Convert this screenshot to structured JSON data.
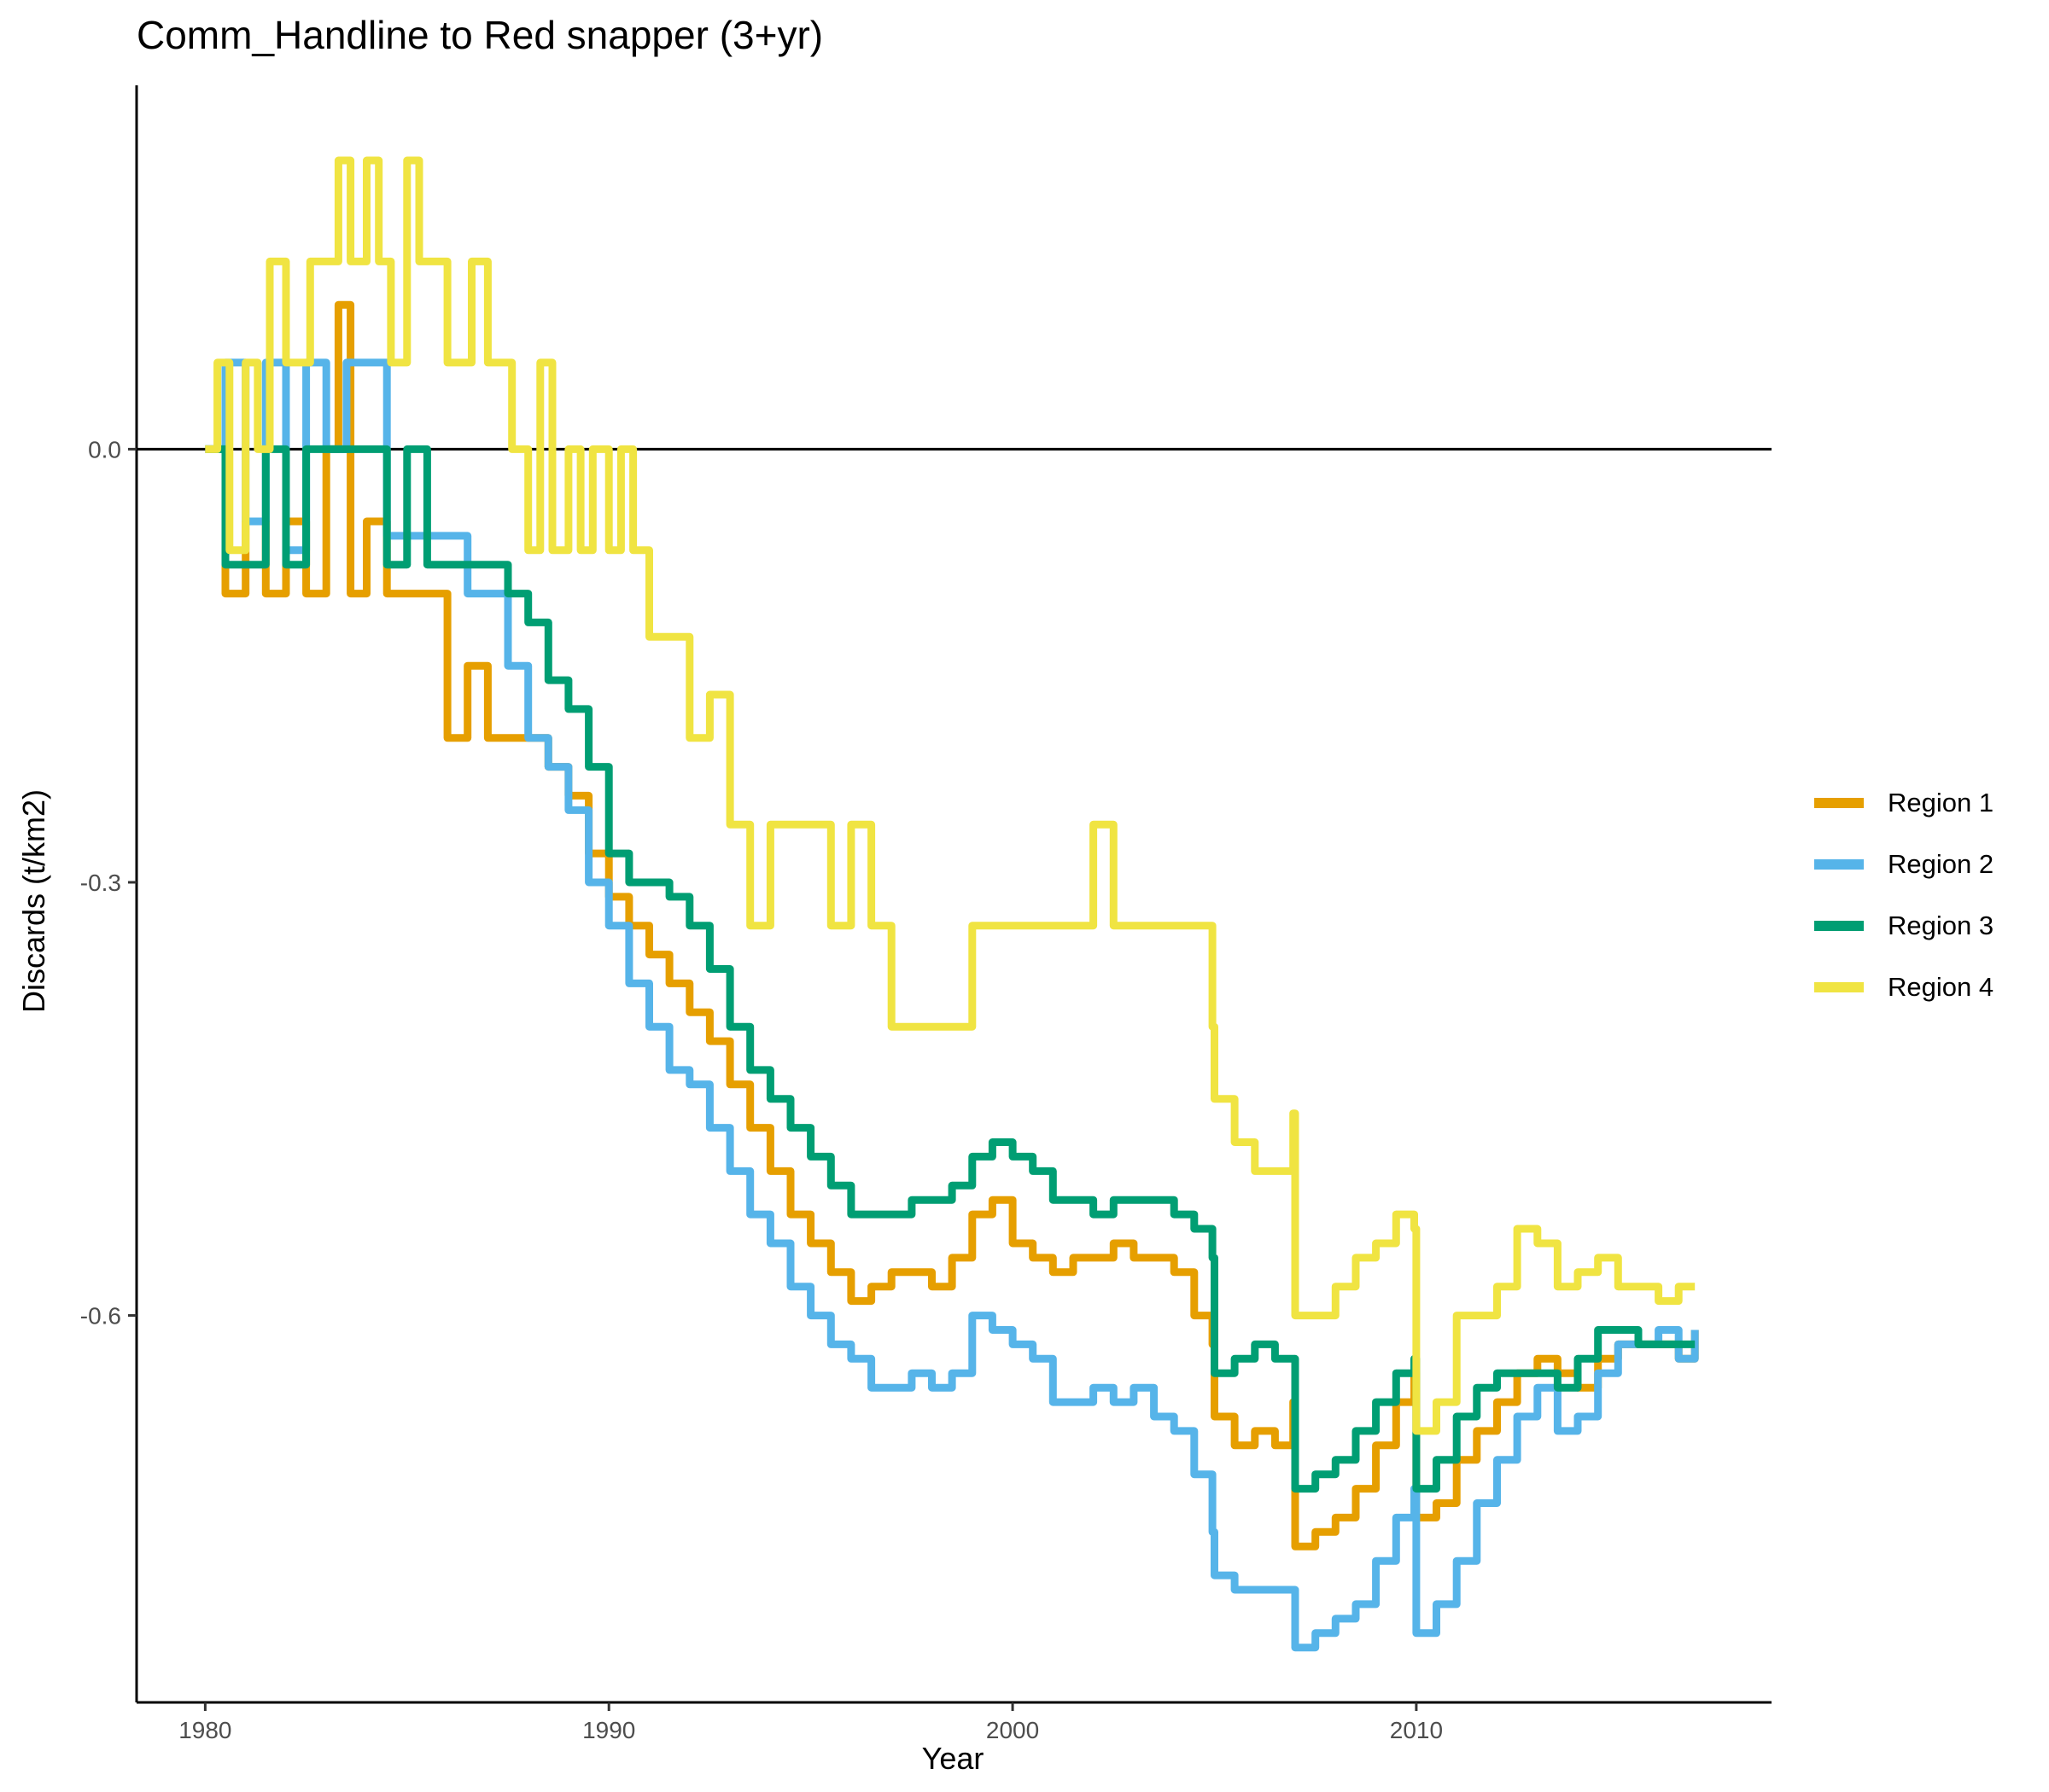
{
  "chart_data": {
    "type": "line",
    "title": "Comm_Handline to Red snapper (3+yr)",
    "xlabel": "Year",
    "ylabel": "Discards (t/km2)",
    "xlim": [
      1978.3,
      2018.8
    ],
    "ylim": [
      -0.868,
      0.252
    ],
    "xticks": [
      1980,
      1990,
      2000,
      2010
    ],
    "xtick_labels": [
      "1980",
      "1990",
      "2000",
      "2010"
    ],
    "yticks": [
      0.0,
      -0.3,
      -0.6
    ],
    "ytick_labels": [
      "0.0",
      "-0.3",
      "-0.6"
    ],
    "hline": 0,
    "grid": false,
    "legend_position": "right",
    "series": [
      {
        "name": "Region 1",
        "color": "#E69F00",
        "x": [
          1980.0,
          1980.5,
          1981.0,
          1981.5,
          1982.0,
          1982.5,
          1983.0,
          1983.3,
          1983.6,
          1984.0,
          1984.5,
          1985.0,
          1985.5,
          1986.0,
          1986.5,
          1987.0,
          1987.5,
          1988.0,
          1988.5,
          1989.0,
          1989.5,
          1990.0,
          1990.5,
          1991.0,
          1991.5,
          1992.0,
          1992.5,
          1993.0,
          1993.5,
          1994.0,
          1994.5,
          1995.0,
          1995.5,
          1996.0,
          1996.5,
          1997.0,
          1997.5,
          1998.0,
          1998.5,
          1999.0,
          1999.5,
          2000.0,
          2000.5,
          2001.0,
          2001.5,
          2002.0,
          2002.5,
          2003.0,
          2003.5,
          2004.0,
          2004.5,
          2004.95,
          2005.0,
          2005.5,
          2006.0,
          2006.5,
          2006.95,
          2007.0,
          2007.5,
          2008.0,
          2008.5,
          2009.0,
          2009.5,
          2009.95,
          2010.0,
          2010.5,
          2011.0,
          2011.5,
          2012.0,
          2012.5,
          2013.0,
          2013.5,
          2014.0,
          2014.5,
          2015.0,
          2015.5,
          2016.0,
          2016.5,
          2016.9
        ],
        "y": [
          0.0,
          -0.1,
          -0.05,
          -0.1,
          -0.05,
          -0.1,
          0.0,
          0.1,
          -0.1,
          -0.05,
          -0.1,
          -0.1,
          -0.1,
          -0.2,
          -0.15,
          -0.2,
          -0.2,
          -0.2,
          -0.22,
          -0.24,
          -0.28,
          -0.31,
          -0.33,
          -0.35,
          -0.37,
          -0.39,
          -0.41,
          -0.44,
          -0.47,
          -0.5,
          -0.53,
          -0.55,
          -0.57,
          -0.59,
          -0.58,
          -0.57,
          -0.57,
          -0.58,
          -0.56,
          -0.53,
          -0.52,
          -0.55,
          -0.56,
          -0.57,
          -0.56,
          -0.56,
          -0.55,
          -0.56,
          -0.56,
          -0.57,
          -0.6,
          -0.62,
          -0.67,
          -0.69,
          -0.68,
          -0.69,
          -0.66,
          -0.76,
          -0.75,
          -0.74,
          -0.72,
          -0.69,
          -0.66,
          -0.64,
          -0.74,
          -0.73,
          -0.7,
          -0.68,
          -0.66,
          -0.64,
          -0.63,
          -0.64,
          -0.65,
          -0.63,
          -0.62,
          -0.62,
          -0.62,
          -0.63,
          -0.61
        ]
      },
      {
        "name": "Region 2",
        "color": "#56B4E9",
        "x": [
          1980.0,
          1980.5,
          1981.0,
          1981.5,
          1982.0,
          1982.5,
          1983.0,
          1983.5,
          1984.0,
          1984.5,
          1985.0,
          1985.5,
          1986.0,
          1986.5,
          1987.0,
          1987.5,
          1988.0,
          1988.5,
          1989.0,
          1989.5,
          1990.0,
          1990.5,
          1991.0,
          1991.5,
          1992.0,
          1992.5,
          1993.0,
          1993.5,
          1994.0,
          1994.5,
          1995.0,
          1995.5,
          1996.0,
          1996.5,
          1997.0,
          1997.5,
          1998.0,
          1998.5,
          1999.0,
          1999.5,
          2000.0,
          2000.5,
          2001.0,
          2001.5,
          2002.0,
          2002.5,
          2003.0,
          2003.5,
          2004.0,
          2004.5,
          2004.95,
          2005.0,
          2005.5,
          2006.0,
          2006.5,
          2006.95,
          2007.0,
          2007.5,
          2008.0,
          2008.5,
          2009.0,
          2009.5,
          2009.95,
          2010.0,
          2010.5,
          2011.0,
          2011.5,
          2012.0,
          2012.5,
          2013.0,
          2013.5,
          2014.0,
          2014.5,
          2015.0,
          2015.5,
          2016.0,
          2016.5,
          2016.9
        ],
        "y": [
          0.0,
          0.06,
          -0.05,
          0.06,
          -0.07,
          0.06,
          0.0,
          0.06,
          0.06,
          -0.06,
          -0.06,
          -0.06,
          -0.06,
          -0.1,
          -0.1,
          -0.15,
          -0.2,
          -0.22,
          -0.25,
          -0.3,
          -0.33,
          -0.37,
          -0.4,
          -0.43,
          -0.44,
          -0.47,
          -0.5,
          -0.53,
          -0.55,
          -0.58,
          -0.6,
          -0.62,
          -0.63,
          -0.65,
          -0.65,
          -0.64,
          -0.65,
          -0.64,
          -0.6,
          -0.61,
          -0.62,
          -0.63,
          -0.66,
          -0.66,
          -0.65,
          -0.66,
          -0.65,
          -0.67,
          -0.68,
          -0.71,
          -0.75,
          -0.78,
          -0.79,
          -0.79,
          -0.79,
          -0.79,
          -0.83,
          -0.82,
          -0.81,
          -0.8,
          -0.77,
          -0.74,
          -0.72,
          -0.82,
          -0.8,
          -0.77,
          -0.73,
          -0.7,
          -0.67,
          -0.65,
          -0.68,
          -0.67,
          -0.64,
          -0.62,
          -0.62,
          -0.61,
          -0.63,
          -0.61
        ]
      },
      {
        "name": "Region 3",
        "color": "#009E73",
        "x": [
          1980.0,
          1980.5,
          1981.0,
          1981.5,
          1982.0,
          1982.5,
          1983.0,
          1983.5,
          1984.0,
          1984.5,
          1985.0,
          1985.5,
          1986.0,
          1986.5,
          1987.0,
          1987.5,
          1988.0,
          1988.5,
          1989.0,
          1989.5,
          1990.0,
          1990.5,
          1991.0,
          1991.5,
          1992.0,
          1992.5,
          1993.0,
          1993.5,
          1994.0,
          1994.5,
          1995.0,
          1995.5,
          1996.0,
          1996.5,
          1997.0,
          1997.5,
          1998.0,
          1998.5,
          1999.0,
          1999.5,
          2000.0,
          2000.5,
          2001.0,
          2001.5,
          2002.0,
          2002.5,
          2003.0,
          2003.5,
          2004.0,
          2004.5,
          2004.95,
          2005.0,
          2005.5,
          2006.0,
          2006.5,
          2006.95,
          2007.0,
          2007.5,
          2008.0,
          2008.5,
          2009.0,
          2009.5,
          2009.95,
          2010.0,
          2010.5,
          2011.0,
          2011.5,
          2012.0,
          2012.5,
          2013.0,
          2013.5,
          2014.0,
          2014.5,
          2015.0,
          2015.5,
          2016.0,
          2016.5,
          2016.9
        ],
        "y": [
          0.0,
          -0.08,
          -0.08,
          0.0,
          -0.08,
          0.0,
          0.0,
          0.0,
          0.0,
          -0.08,
          0.0,
          -0.08,
          -0.08,
          -0.08,
          -0.08,
          -0.1,
          -0.12,
          -0.16,
          -0.18,
          -0.22,
          -0.28,
          -0.3,
          -0.3,
          -0.31,
          -0.33,
          -0.36,
          -0.4,
          -0.43,
          -0.45,
          -0.47,
          -0.49,
          -0.51,
          -0.53,
          -0.53,
          -0.53,
          -0.52,
          -0.52,
          -0.51,
          -0.49,
          -0.48,
          -0.49,
          -0.5,
          -0.52,
          -0.52,
          -0.53,
          -0.52,
          -0.52,
          -0.52,
          -0.53,
          -0.54,
          -0.56,
          -0.64,
          -0.63,
          -0.62,
          -0.63,
          -0.63,
          -0.72,
          -0.71,
          -0.7,
          -0.68,
          -0.66,
          -0.64,
          -0.63,
          -0.72,
          -0.7,
          -0.67,
          -0.65,
          -0.64,
          -0.64,
          -0.64,
          -0.65,
          -0.63,
          -0.61,
          -0.61,
          -0.62,
          -0.62,
          -0.62,
          -0.62
        ]
      },
      {
        "name": "Region 4",
        "color": "#F0E442",
        "x": [
          1980.0,
          1980.3,
          1980.6,
          1981.0,
          1981.3,
          1981.6,
          1982.0,
          1982.3,
          1982.6,
          1983.0,
          1983.3,
          1983.6,
          1984.0,
          1984.3,
          1984.6,
          1985.0,
          1985.3,
          1985.6,
          1986.0,
          1986.3,
          1986.6,
          1987.0,
          1987.3,
          1987.6,
          1988.0,
          1988.3,
          1988.6,
          1989.0,
          1989.3,
          1989.6,
          1990.0,
          1990.3,
          1990.6,
          1991.0,
          1991.5,
          1992.0,
          1992.5,
          1993.0,
          1993.5,
          1994.0,
          1994.5,
          1995.0,
          1995.5,
          1996.0,
          1996.5,
          1997.0,
          1997.5,
          1998.0,
          1998.5,
          1999.0,
          1999.5,
          2000.0,
          2000.5,
          2001.0,
          2001.5,
          2002.0,
          2002.5,
          2003.0,
          2003.5,
          2004.0,
          2004.5,
          2004.95,
          2005.0,
          2005.5,
          2006.0,
          2006.5,
          2006.95,
          2007.0,
          2007.5,
          2008.0,
          2008.5,
          2009.0,
          2009.5,
          2009.95,
          2010.0,
          2010.5,
          2011.0,
          2011.5,
          2012.0,
          2012.5,
          2013.0,
          2013.5,
          2014.0,
          2014.5,
          2015.0,
          2015.5,
          2016.0,
          2016.5,
          2016.9
        ],
        "y": [
          0.0,
          0.06,
          -0.07,
          0.06,
          0.0,
          0.13,
          0.06,
          0.06,
          0.13,
          0.13,
          0.2,
          0.13,
          0.2,
          0.13,
          0.06,
          0.2,
          0.13,
          0.13,
          0.06,
          0.06,
          0.13,
          0.06,
          0.06,
          0.0,
          -0.07,
          0.06,
          -0.07,
          0.0,
          -0.07,
          0.0,
          -0.07,
          0.0,
          -0.07,
          -0.13,
          -0.13,
          -0.2,
          -0.17,
          -0.26,
          -0.33,
          -0.26,
          -0.26,
          -0.26,
          -0.33,
          -0.26,
          -0.33,
          -0.4,
          -0.4,
          -0.4,
          -0.4,
          -0.33,
          -0.33,
          -0.33,
          -0.33,
          -0.33,
          -0.33,
          -0.26,
          -0.33,
          -0.33,
          -0.33,
          -0.33,
          -0.33,
          -0.4,
          -0.45,
          -0.48,
          -0.5,
          -0.5,
          -0.46,
          -0.6,
          -0.6,
          -0.58,
          -0.56,
          -0.55,
          -0.53,
          -0.54,
          -0.68,
          -0.66,
          -0.6,
          -0.6,
          -0.58,
          -0.54,
          -0.55,
          -0.58,
          -0.57,
          -0.56,
          -0.58,
          -0.58,
          -0.59,
          -0.58,
          -0.58
        ]
      }
    ]
  }
}
